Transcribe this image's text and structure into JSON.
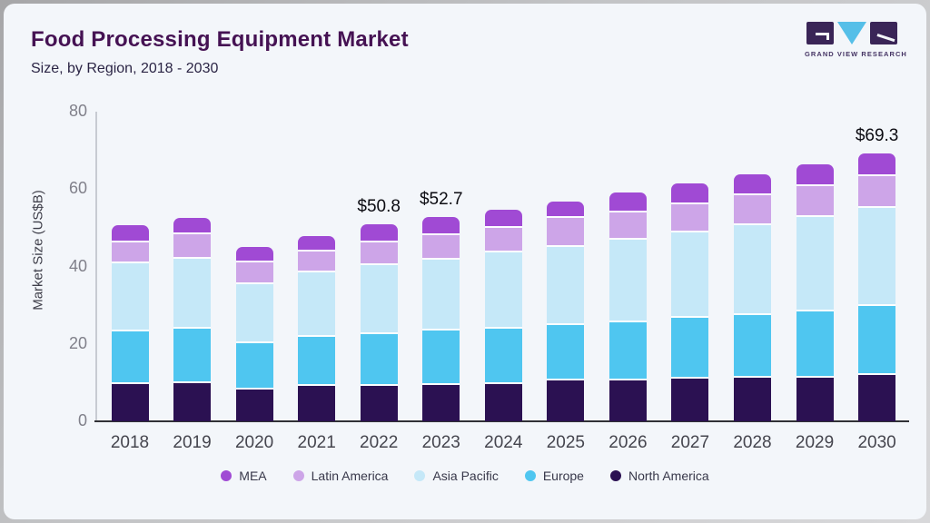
{
  "header": {
    "title": "Food Processing Equipment Market",
    "subtitle": "Size, by Region, 2018 - 2030"
  },
  "logo": {
    "text": "GRAND VIEW RESEARCH"
  },
  "chart_data": {
    "type": "bar",
    "subtype": "stacked-vertical",
    "title": "Food Processing Equipment Market Size, by Region, 2018 - 2030",
    "ylabel": "Market Size (US$B)",
    "ylim": [
      0,
      80
    ],
    "yticks": [
      0,
      20,
      40,
      60,
      80
    ],
    "grid": false,
    "legend_position": "bottom",
    "categories": [
      "2018",
      "2019",
      "2020",
      "2021",
      "2022",
      "2023",
      "2024",
      "2025",
      "2026",
      "2027",
      "2028",
      "2029",
      "2030"
    ],
    "series": [
      {
        "name": "North America",
        "color": "#2b1152",
        "values": [
          10.1,
          10.4,
          8.6,
          9.5,
          9.6,
          9.9,
          10.1,
          10.9,
          11.0,
          11.4,
          11.7,
          11.8,
          12.4
        ]
      },
      {
        "name": "Europe",
        "color": "#4fc6f0",
        "values": [
          13.6,
          13.9,
          12.1,
          12.7,
          13.5,
          14.0,
          14.4,
          14.5,
          15.1,
          15.8,
          16.1,
          17.0,
          17.8
        ]
      },
      {
        "name": "Asia Pacific",
        "color": "#c5e8f8",
        "values": [
          17.7,
          18.2,
          15.3,
          16.8,
          17.7,
          18.3,
          19.6,
          20.1,
          21.4,
          22.0,
          23.3,
          24.4,
          25.4
        ]
      },
      {
        "name": "Latin America",
        "color": "#cda5e8",
        "values": [
          5.3,
          6.3,
          5.6,
          5.4,
          5.8,
          6.4,
          6.3,
          7.4,
          7.0,
          7.4,
          7.9,
          8.1,
          8.3
        ]
      },
      {
        "name": "MEA",
        "color": "#a04ad4",
        "values": [
          3.9,
          3.8,
          3.4,
          3.4,
          4.2,
          4.1,
          4.2,
          3.9,
          4.7,
          4.8,
          4.8,
          5.2,
          5.4
        ]
      }
    ],
    "totals": [
      50.6,
      52.6,
      45.0,
      47.8,
      50.8,
      52.7,
      54.6,
      56.8,
      59.2,
      61.4,
      63.8,
      66.5,
      69.3
    ],
    "value_labels": {
      "2022": "$50.8",
      "2023": "$52.7",
      "2030": "$69.3"
    },
    "legend": [
      "MEA",
      "Latin America",
      "Asia Pacific",
      "Europe",
      "North America"
    ]
  }
}
